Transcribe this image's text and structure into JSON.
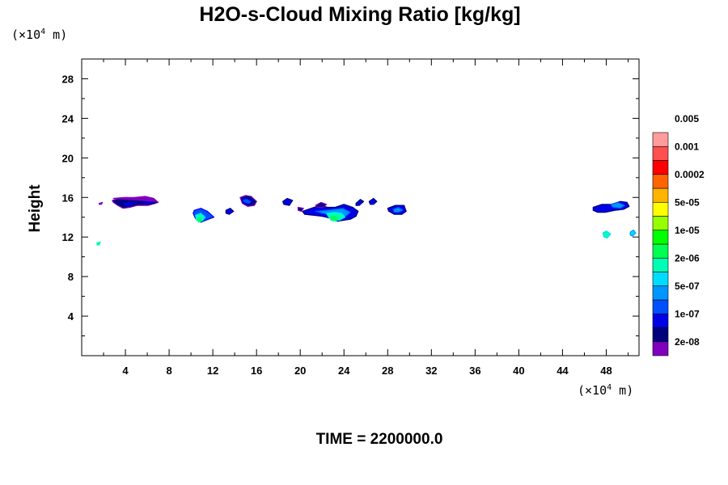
{
  "chart_data": {
    "type": "contour",
    "title": "H2O-s-Cloud Mixing Ratio [kg/kg]",
    "ylabel": "Height",
    "xlabel": "",
    "x_unit": "(×10⁴ m)",
    "y_unit": "(×10⁴ m)",
    "x_unit_parts": {
      "pre": "(×10",
      "sup": "4",
      "post": " m)"
    },
    "y_unit_parts": {
      "pre": "(×10",
      "sup": "4",
      "post": " m)"
    },
    "footer": "TIME = 2200000.0",
    "xlim": [
      0,
      51
    ],
    "ylim": [
      0,
      30
    ],
    "x_ticks": [
      4,
      8,
      12,
      16,
      20,
      24,
      28,
      32,
      36,
      40,
      44,
      48
    ],
    "y_ticks": [
      4,
      8,
      12,
      16,
      20,
      24,
      28
    ],
    "x_minor_step": 2,
    "y_minor_step": 2,
    "grid": false,
    "colorbar": {
      "colors": [
        "#7f00bf",
        "#00007f",
        "#0000e6",
        "#0050ff",
        "#0096ff",
        "#00dcff",
        "#00ffb4",
        "#00ff50",
        "#00ff00",
        "#96ff00",
        "#ffff00",
        "#ffb400",
        "#ff6400",
        "#ff0000",
        "#ff5050",
        "#ff9c9c"
      ],
      "labels": [
        "2e-08",
        "1e-07",
        "5e-07",
        "2e-06",
        "1e-05",
        "5e-05",
        "0.0002",
        "0.001",
        "0.005"
      ]
    },
    "cloud_regions": [
      {
        "x": [
          2.8,
          3.4,
          4.1,
          4.9,
          5.8,
          6.7,
          7.0,
          6.1,
          5.1,
          4.4,
          3.8,
          3.3,
          2.9
        ],
        "y": [
          15.7,
          15.9,
          16.0,
          15.9,
          16.0,
          15.8,
          15.5,
          15.2,
          15.2,
          15.0,
          14.9,
          15.2,
          15.5
        ],
        "level": 1
      },
      {
        "x": [
          3.7,
          4.4,
          5.3,
          6.2,
          6.7,
          6.0,
          5.2,
          4.3,
          3.8
        ],
        "y": [
          15.5,
          15.6,
          15.5,
          15.7,
          15.4,
          15.3,
          15.4,
          15.1,
          15.2
        ],
        "level": 2
      },
      {
        "x": [
          2.9,
          3.8,
          4.8,
          5.8,
          6.6,
          6.8
        ],
        "y": [
          15.9,
          16.0,
          16.0,
          16.1,
          15.9,
          15.6
        ],
        "level": 0
      },
      {
        "x": [
          10.3,
          10.9,
          11.5,
          12.1,
          11.6,
          10.9,
          10.4,
          10.2
        ],
        "y": [
          14.7,
          14.9,
          14.6,
          14.0,
          13.8,
          13.5,
          13.9,
          14.4
        ],
        "level": 3
      },
      {
        "x": [
          10.4,
          10.9,
          11.3,
          11.0,
          10.5
        ],
        "y": [
          14.2,
          14.4,
          14.0,
          13.6,
          13.7
        ],
        "level": 6
      },
      {
        "x": [
          10.5,
          10.9,
          11.1,
          10.7
        ],
        "y": [
          13.9,
          14.0,
          13.7,
          13.5
        ],
        "level": 7
      },
      {
        "x": [
          13.2,
          13.6,
          13.9,
          13.5,
          13.2
        ],
        "y": [
          14.7,
          14.9,
          14.6,
          14.3,
          14.4
        ],
        "level": 2
      },
      {
        "x": [
          14.5,
          15.0,
          15.5,
          16.0,
          15.8,
          15.2,
          14.7
        ],
        "y": [
          16.0,
          16.2,
          16.1,
          15.6,
          15.2,
          15.1,
          15.4
        ],
        "level": 1
      },
      {
        "x": [
          14.7,
          15.1,
          15.6,
          15.3,
          14.8
        ],
        "y": [
          15.8,
          15.9,
          15.6,
          15.3,
          15.5
        ],
        "level": 3
      },
      {
        "x": [
          18.4,
          18.8,
          19.3,
          19.0,
          18.5
        ],
        "y": [
          15.6,
          15.9,
          15.7,
          15.2,
          15.3
        ],
        "level": 2
      },
      {
        "x": [
          19.8,
          20.3,
          20.1,
          19.8
        ],
        "y": [
          15.0,
          14.9,
          14.6,
          14.7
        ],
        "level": 1
      },
      {
        "x": [
          20.2,
          21.0,
          21.8,
          22.5,
          23.2,
          24.0,
          24.8,
          25.3,
          25.1,
          24.6,
          24.0,
          23.4,
          22.8,
          22.0,
          21.2,
          20.4
        ],
        "y": [
          14.6,
          14.9,
          15.2,
          15.0,
          15.0,
          15.3,
          15.0,
          14.6,
          14.1,
          13.8,
          13.7,
          13.6,
          13.9,
          14.1,
          14.2,
          14.3
        ],
        "level": 2
      },
      {
        "x": [
          21.4,
          22.3,
          23.1,
          23.9,
          24.6,
          24.2,
          23.5,
          22.8,
          22.0
        ],
        "y": [
          14.6,
          14.7,
          14.8,
          14.9,
          14.5,
          14.1,
          14.0,
          14.2,
          14.4
        ],
        "level": 4
      },
      {
        "x": [
          22.4,
          23.1,
          23.8,
          24.1,
          23.6,
          23.0,
          22.6
        ],
        "y": [
          14.4,
          14.5,
          14.4,
          14.0,
          13.7,
          13.7,
          14.0
        ],
        "level": 6
      },
      {
        "x": [
          22.7,
          23.2,
          23.6,
          23.2,
          22.8
        ],
        "y": [
          14.1,
          14.2,
          13.9,
          13.6,
          13.7
        ],
        "level": 7
      },
      {
        "x": [
          21.4,
          21.9,
          22.4,
          22.1,
          21.6
        ],
        "y": [
          15.2,
          15.5,
          15.3,
          15.0,
          15.0
        ],
        "level": 1
      },
      {
        "x": [
          25.1,
          25.5,
          25.8,
          25.4,
          25.1
        ],
        "y": [
          15.4,
          15.8,
          15.6,
          15.2,
          15.2
        ],
        "level": 2
      },
      {
        "x": [
          26.3,
          26.7,
          27.0,
          26.7,
          26.4
        ],
        "y": [
          15.6,
          15.9,
          15.6,
          15.3,
          15.3
        ],
        "level": 2
      },
      {
        "x": [
          28.0,
          28.7,
          29.5,
          29.7,
          29.3,
          28.6,
          28.1
        ],
        "y": [
          14.9,
          15.2,
          15.2,
          14.6,
          14.3,
          14.3,
          14.6
        ],
        "level": 2
      },
      {
        "x": [
          28.5,
          29.0,
          29.4,
          29.0,
          28.6
        ],
        "y": [
          14.8,
          15.0,
          14.7,
          14.5,
          14.5
        ],
        "level": 4
      },
      {
        "x": [
          46.8,
          47.6,
          48.5,
          49.3,
          49.9,
          50.1,
          49.6,
          48.8,
          47.9,
          47.2,
          46.8
        ],
        "y": [
          15.0,
          15.3,
          15.3,
          15.6,
          15.5,
          15.1,
          14.8,
          14.7,
          14.5,
          14.5,
          14.7
        ],
        "level": 2
      },
      {
        "x": [
          48.4,
          49.1,
          49.7,
          49.3,
          48.6
        ],
        "y": [
          15.3,
          15.5,
          15.2,
          14.9,
          15.0
        ],
        "level": 4
      },
      {
        "x": [
          47.7,
          48.0,
          48.4,
          48.1,
          47.8
        ],
        "y": [
          12.4,
          12.6,
          12.3,
          11.9,
          12.0
        ],
        "level": 6
      },
      {
        "x": [
          50.2,
          50.5,
          50.7,
          50.4,
          50.2
        ],
        "y": [
          12.5,
          12.7,
          12.4,
          12.1,
          12.2
        ],
        "level": 5
      },
      {
        "x": [
          1.4,
          1.7,
          1.6,
          1.4
        ],
        "y": [
          11.4,
          11.5,
          11.2,
          11.2
        ],
        "level": 7
      },
      {
        "x": [
          1.6,
          1.9,
          1.8,
          1.6
        ],
        "y": [
          15.4,
          15.5,
          15.3,
          15.3
        ],
        "level": 0
      }
    ]
  }
}
